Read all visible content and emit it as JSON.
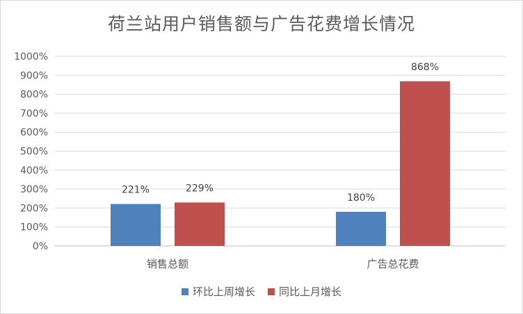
{
  "chart_data": {
    "type": "bar",
    "title": "荷兰站用户销售额与广告花费增长情况",
    "categories": [
      "销售总额",
      "广告总花费"
    ],
    "series": [
      {
        "name": "环比上周增长",
        "values": [
          221,
          180
        ],
        "labels": [
          "221%",
          "180%"
        ],
        "color": "#4f81bd"
      },
      {
        "name": "同比上月增长",
        "values": [
          229,
          868
        ],
        "labels": [
          "229%",
          "868%"
        ],
        "color": "#c0504d"
      }
    ],
    "ylim": [
      0,
      1000
    ],
    "yticks": [
      "0%",
      "100%",
      "200%",
      "300%",
      "400%",
      "500%",
      "600%",
      "700%",
      "800%",
      "900%",
      "1000%"
    ],
    "grid": true,
    "legend": "bottom"
  }
}
